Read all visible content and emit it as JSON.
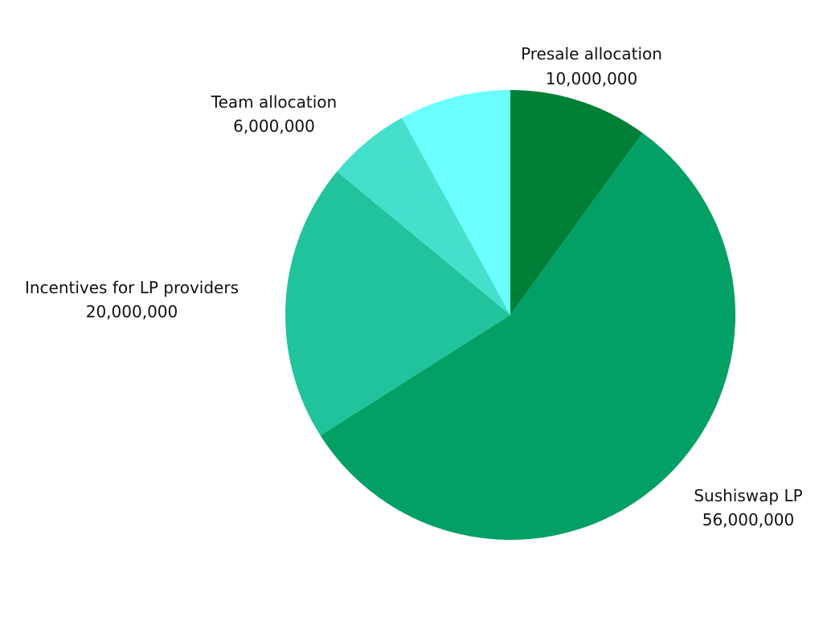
{
  "chart_data": {
    "type": "pie",
    "title": "",
    "slices": [
      {
        "label": "Presale allocation",
        "value": 10000000,
        "value_text": "10,000,000",
        "color": "#008037"
      },
      {
        "label": "Sushiswap LP",
        "value": 56000000,
        "value_text": "56,000,000",
        "color": "#03A066"
      },
      {
        "label": "Incentives for LP providers",
        "value": 20000000,
        "value_text": "20,000,000",
        "color": "#20C39C"
      },
      {
        "label": "Team allocation",
        "value": 6000000,
        "value_text": "6,000,000",
        "color": "#44E0CB"
      },
      {
        "label": "",
        "value": 8000000,
        "value_text": "",
        "color": "#6BFFFF"
      }
    ],
    "start_angle_deg": 0,
    "direction": "clockwise",
    "legend": "none"
  }
}
